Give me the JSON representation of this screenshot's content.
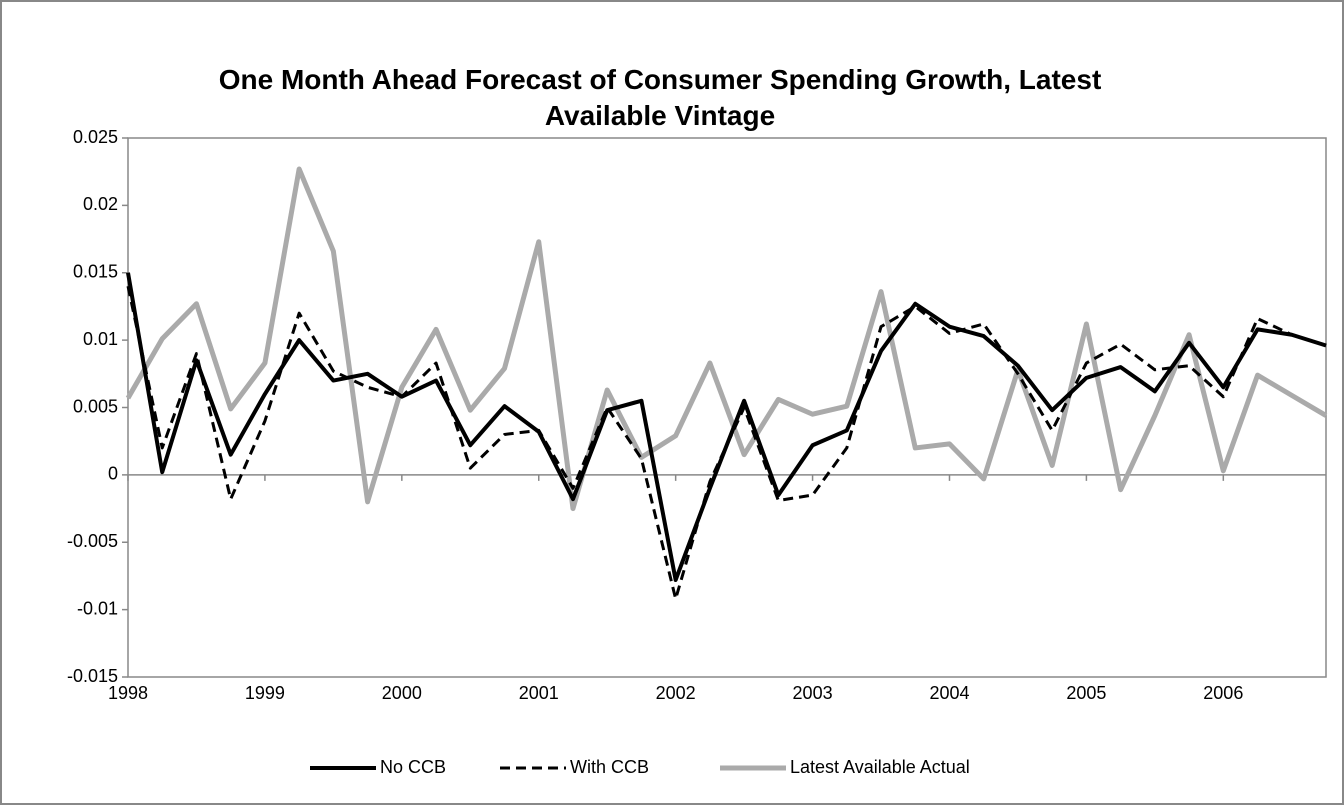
{
  "chart_data": {
    "type": "line",
    "title": "One Month Ahead Forecast of Consumer Spending Growth, Latest Available Vintage",
    "categories": [
      "1998",
      null,
      null,
      null,
      "1999",
      null,
      null,
      null,
      "2000",
      null,
      null,
      null,
      "2001",
      null,
      null,
      null,
      "2002",
      null,
      null,
      null,
      "2003",
      null,
      null,
      null,
      "2004",
      null,
      null,
      null,
      "2005",
      null,
      null,
      null,
      "2006",
      null,
      null,
      null
    ],
    "series": [
      {
        "name": "No CCB",
        "color": "#000000",
        "dash": "solid",
        "values": [
          0.015,
          0.0002,
          0.0085,
          0.0015,
          0.006,
          0.01,
          0.007,
          0.0075,
          0.0058,
          0.007,
          0.0022,
          0.0051,
          0.0032,
          -0.0018,
          0.0048,
          0.0055,
          -0.0078,
          -0.001,
          0.0055,
          -0.0015,
          0.0022,
          0.0033,
          0.0092,
          0.0127,
          0.011,
          0.0103,
          0.0081,
          0.0048,
          0.0072,
          0.008,
          0.0062,
          0.0098,
          0.0065,
          0.0108,
          0.0104,
          0.0096
        ]
      },
      {
        "name": "With CCB",
        "color": "#000000",
        "dash": "dashed",
        "values": [
          0.014,
          0.002,
          0.009,
          -0.0018,
          0.004,
          0.012,
          0.0077,
          0.0065,
          0.0058,
          0.0083,
          0.0005,
          0.003,
          0.0033,
          -0.001,
          0.005,
          0.0012,
          -0.0092,
          -0.0005,
          0.005,
          -0.0019,
          -0.0015,
          0.002,
          0.011,
          0.0125,
          0.0105,
          0.0112,
          0.0075,
          0.0033,
          0.0083,
          0.0097,
          0.0078,
          0.0081,
          0.0058,
          0.0116,
          0.0104,
          0.0096
        ]
      },
      {
        "name": "Latest Available Actual",
        "color": "#aaaaaa",
        "dash": "solid",
        "values": [
          0.0057,
          0.0101,
          0.0127,
          0.0049,
          0.0083,
          0.0227,
          0.0166,
          -0.002,
          0.0065,
          0.0108,
          0.0048,
          0.0079,
          0.0173,
          -0.0025,
          0.0063,
          0.0013,
          0.0029,
          0.0083,
          0.0015,
          0.0056,
          0.0045,
          0.0051,
          0.0136,
          0.002,
          0.0023,
          -0.0003,
          0.0078,
          0.0007,
          0.0112,
          -0.0011,
          0.0044,
          0.0104,
          0.0003,
          0.0074,
          0.0059,
          0.0044
        ]
      }
    ],
    "ylim": [
      -0.015,
      0.025
    ],
    "yticks": [
      -0.015,
      -0.01,
      -0.005,
      0,
      0.005,
      0.01,
      0.015,
      0.02,
      0.025
    ],
    "legend": "bottom"
  }
}
